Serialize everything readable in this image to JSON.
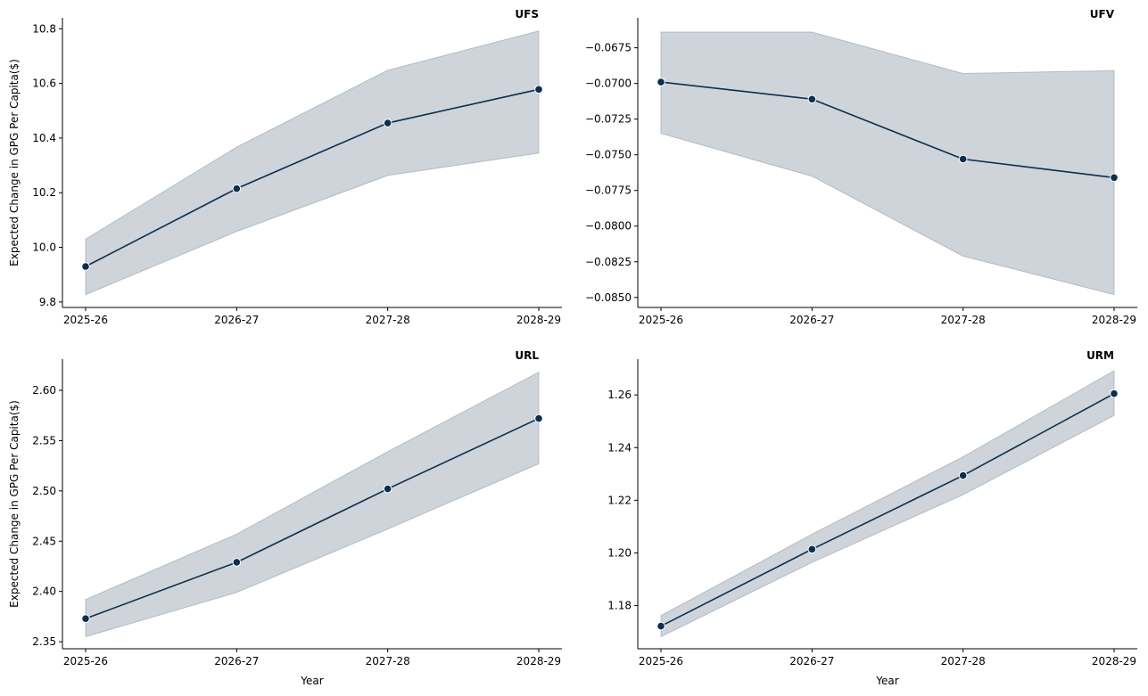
{
  "colors": {
    "line": "#0d2e4d",
    "band": "#8a99a8",
    "marker_edge": "#ffffff"
  },
  "chart_data": [
    {
      "type": "line",
      "title": "UFS",
      "categories": [
        "2025-26",
        "2026-27",
        "2027-28",
        "2028-29"
      ],
      "values": [
        9.93,
        10.215,
        10.455,
        10.578
      ],
      "band_lower": [
        9.827,
        10.058,
        10.263,
        10.345
      ],
      "band_upper": [
        10.03,
        10.367,
        10.648,
        10.792
      ],
      "ylim": [
        9.78,
        10.84
      ],
      "yticks": [
        9.8,
        10.0,
        10.2,
        10.4,
        10.6,
        10.8
      ],
      "ytick_labels": [
        "9.8",
        "10.0",
        "10.2",
        "10.4",
        "10.6",
        "10.8"
      ],
      "xlabel": "",
      "ylabel": "Expected Change in GPG Per Capita($)"
    },
    {
      "type": "line",
      "title": "UFV",
      "categories": [
        "2025-26",
        "2026-27",
        "2027-28",
        "2028-29"
      ],
      "values": [
        -0.0699,
        -0.0711,
        -0.0753,
        -0.0766
      ],
      "band_lower": [
        -0.0735,
        -0.0765,
        -0.0821,
        -0.0848
      ],
      "band_upper": [
        -0.0664,
        -0.0664,
        -0.0693,
        -0.0691
      ],
      "ylim": [
        -0.0857,
        -0.0654
      ],
      "yticks": [
        -0.085,
        -0.0825,
        -0.08,
        -0.0775,
        -0.075,
        -0.0725,
        -0.07,
        -0.0675
      ],
      "ytick_labels": [
        "−0.0850",
        "−0.0825",
        "−0.0800",
        "−0.0775",
        "−0.0750",
        "−0.0725",
        "−0.0700",
        "−0.0675"
      ],
      "xlabel": "",
      "ylabel": ""
    },
    {
      "type": "line",
      "title": "URL",
      "categories": [
        "2025-26",
        "2026-27",
        "2027-28",
        "2028-29"
      ],
      "values": [
        2.373,
        2.429,
        2.502,
        2.572
      ],
      "band_lower": [
        2.355,
        2.399,
        2.462,
        2.527
      ],
      "band_upper": [
        2.392,
        2.457,
        2.539,
        2.618
      ],
      "ylim": [
        2.343,
        2.631
      ],
      "yticks": [
        2.35,
        2.4,
        2.45,
        2.5,
        2.55,
        2.6
      ],
      "ytick_labels": [
        "2.35",
        "2.40",
        "2.45",
        "2.50",
        "2.55",
        "2.60"
      ],
      "xlabel": "Year",
      "ylabel": "Expected Change in GPG Per Capita($)"
    },
    {
      "type": "line",
      "title": "URM",
      "categories": [
        "2025-26",
        "2026-27",
        "2027-28",
        "2028-29"
      ],
      "values": [
        1.1722,
        1.2014,
        1.2294,
        1.2605
      ],
      "band_lower": [
        1.1682,
        1.1964,
        1.2221,
        1.2522
      ],
      "band_upper": [
        1.1762,
        1.2071,
        1.2365,
        1.2692
      ],
      "ylim": [
        1.1636,
        1.2736
      ],
      "yticks": [
        1.18,
        1.2,
        1.22,
        1.24,
        1.26
      ],
      "ytick_labels": [
        "1.18",
        "1.20",
        "1.22",
        "1.24",
        "1.26"
      ],
      "xlabel": "Year",
      "ylabel": ""
    }
  ]
}
